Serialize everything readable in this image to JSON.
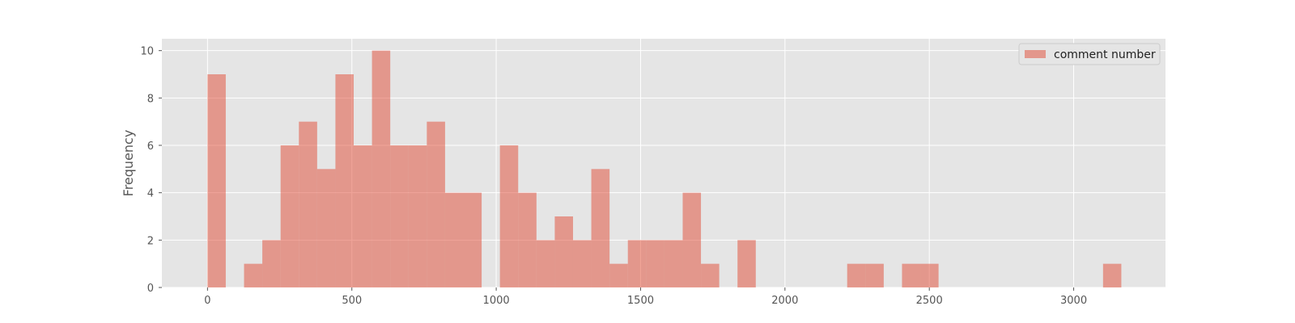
{
  "chart_data": {
    "type": "bar",
    "ylabel": "Frequency",
    "xlabel": "",
    "xlim": [
      -158,
      3318
    ],
    "ylim": [
      0,
      10.5
    ],
    "grid": true,
    "legend_position": "top-right",
    "x_ticks": [
      0,
      500,
      1000,
      1500,
      2000,
      2500,
      3000
    ],
    "y_ticks": [
      0,
      2,
      4,
      6,
      8,
      10
    ],
    "colors": {
      "bar": "#E24A33",
      "plot_background": "#E5E5E5",
      "grid": "#FFFFFF",
      "text": "#555555"
    },
    "series": [
      {
        "name": "comment number",
        "bin_edges": [
          0,
          63.3,
          126.6,
          189.9,
          253.2,
          316.5,
          379.8,
          443.1,
          506.4,
          569.7,
          633,
          696.3,
          759.6,
          822.9,
          886.2,
          949.5,
          1012.8,
          1076.1,
          1139.4,
          1202.7,
          1266,
          1329.3,
          1392.6,
          1455.9,
          1519.2,
          1582.5,
          1645.8,
          1709.1,
          1772.4,
          1835.7,
          1899,
          1962.3,
          2025.6,
          2088.9,
          2152.2,
          2215.5,
          2278.8,
          2342.1,
          2405.4,
          2468.7,
          2532,
          2595.3,
          2658.6,
          2721.9,
          2785.2,
          2848.5,
          2911.8,
          2975.1,
          3038.4,
          3101.7,
          3165
        ],
        "values": [
          9,
          0,
          1,
          2,
          6,
          7,
          5,
          9,
          6,
          10,
          6,
          6,
          7,
          4,
          4,
          0,
          6,
          4,
          2,
          3,
          2,
          5,
          1,
          2,
          2,
          2,
          4,
          1,
          0,
          2,
          0,
          0,
          0,
          0,
          0,
          1,
          1,
          0,
          1,
          1,
          0,
          0,
          0,
          0,
          0,
          0,
          0,
          0,
          0,
          1
        ]
      }
    ]
  }
}
